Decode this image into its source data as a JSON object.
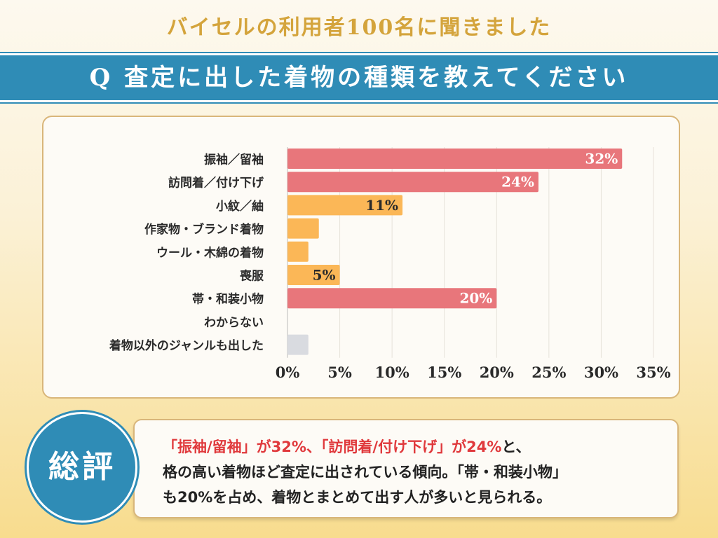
{
  "header": {
    "subtitle": "バイセルの利用者100名に聞きました",
    "question": "Q 査定に出した着物の種類を教えてください"
  },
  "chart_data": {
    "type": "bar",
    "orientation": "horizontal",
    "categories": [
      "振袖／留袖",
      "訪問着／付け下げ",
      "小紋／紬",
      "作家物・ブランド着物",
      "ウール・木綿の着物",
      "喪服",
      "帯・和装小物",
      "わからない",
      "着物以外のジャンルも出した"
    ],
    "values": [
      32,
      24,
      11,
      3,
      2,
      5,
      20,
      0,
      2
    ],
    "data_labels": [
      "32%",
      "24%",
      "11%",
      "",
      "",
      "5%",
      "20%",
      "",
      ""
    ],
    "colors": [
      "#e8767b",
      "#e8767b",
      "#fbb757",
      "#fbb757",
      "#fbb757",
      "#fbb757",
      "#e8767b",
      "#d9dbe0",
      "#d9dbe0"
    ],
    "xlim": [
      0,
      35
    ],
    "xticks": [
      "0%",
      "5%",
      "10%",
      "15%",
      "20%",
      "25%",
      "30%",
      "35%"
    ],
    "grid": true
  },
  "summary": {
    "badge": "総評",
    "line1_red": "「振袖/留袖」が32%、「訪問着/付け下げ」が24%",
    "line1_rest": "と、",
    "line2": "格の高い着物ほど査定に出されている傾向。「帯・和装小物」",
    "line3": "も20%を占め、着物とまとめて出す人が多いと見られる。"
  }
}
